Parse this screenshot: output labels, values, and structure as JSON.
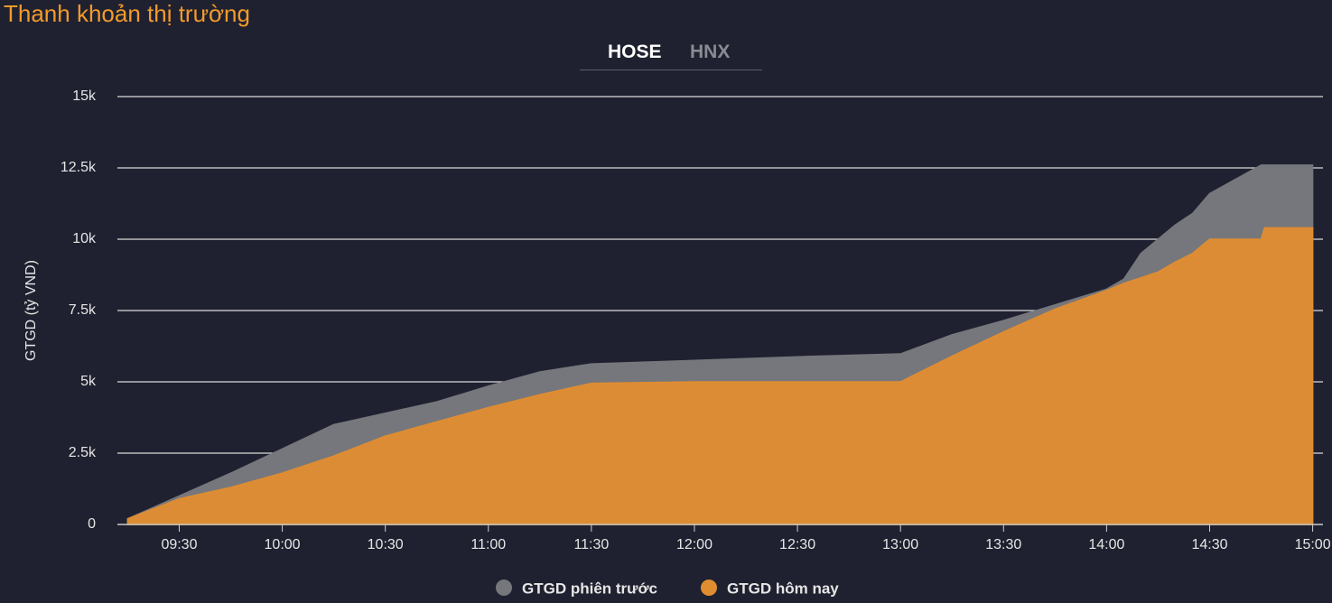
{
  "header": {
    "title": "Thanh khoản thị trường"
  },
  "tabs": [
    "HOSE",
    "HNX"
  ],
  "chart_data": {
    "type": "area",
    "y_label": "GTGD (tỷ VND)",
    "x": [
      "09:15",
      "09:30",
      "09:45",
      "10:00",
      "10:15",
      "10:30",
      "10:45",
      "11:00",
      "11:15",
      "11:30",
      "12:00",
      "12:30",
      "13:00",
      "13:15",
      "13:30",
      "13:45",
      "14:00",
      "14:05",
      "14:10",
      "14:15",
      "14:20",
      "14:25",
      "14:30",
      "14:45",
      "14:46",
      "15:00"
    ],
    "series": [
      {
        "name": "GTGD phiên trước",
        "color": "#76777c",
        "values": [
          200,
          1000,
          1800,
          2650,
          3500,
          3900,
          4300,
          4850,
          5350,
          5630,
          5750,
          5880,
          5980,
          6650,
          7150,
          7700,
          8250,
          8600,
          9500,
          10000,
          10500,
          10900,
          11600,
          12600,
          12600,
          12600
        ]
      },
      {
        "name": "GTGD hôm nay",
        "color": "#e08d31",
        "values": [
          200,
          900,
          1300,
          1800,
          2400,
          3100,
          3600,
          4100,
          4550,
          4950,
          5000,
          5000,
          5000,
          5900,
          6750,
          7550,
          8200,
          8450,
          8650,
          8850,
          9200,
          9500,
          10000,
          10000,
          10400,
          10400
        ]
      }
    ],
    "xlim": [
      "09:12",
      "15:03"
    ],
    "xticks": [
      "09:30",
      "10:00",
      "10:30",
      "11:00",
      "11:30",
      "12:00",
      "12:30",
      "13:00",
      "13:30",
      "14:00",
      "14:30",
      "15:00"
    ],
    "ylim": [
      0,
      15000
    ],
    "yticks": [
      0,
      {
        "value": 2500,
        "label": "2.5k"
      },
      {
        "value": 5000,
        "label": "5k"
      },
      {
        "value": 7500,
        "label": "7.5k"
      },
      {
        "value": 10000,
        "label": "10k"
      },
      {
        "value": 12500,
        "label": "12.5k"
      },
      {
        "value": 15000,
        "label": "15k"
      }
    ],
    "grid": true
  }
}
